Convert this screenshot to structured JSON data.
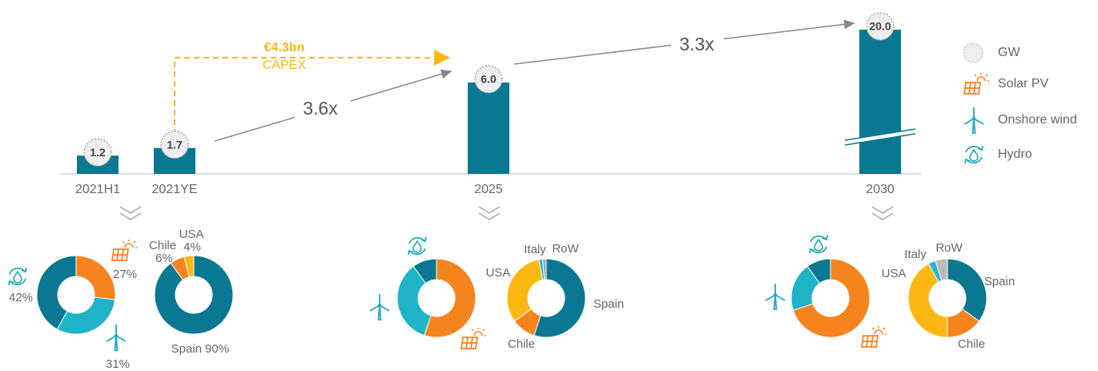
{
  "chart_data": [
    {
      "type": "bar",
      "categories": [
        "2021H1",
        "2021YE",
        "2025",
        "2030"
      ],
      "values": [
        1.2,
        1.7,
        6.0,
        20.0
      ],
      "value_labels": [
        "1.2",
        "1.7",
        "6.0",
        "20.0"
      ],
      "color": "#0b7893",
      "annotations": [
        "€4.3bn",
        "CAPEX",
        "3.6x",
        "3.3x"
      ],
      "legend": [
        "GW",
        "Solar PV",
        "Onshore wind",
        "Hydro"
      ]
    },
    {
      "type": "donut",
      "values": [
        27,
        31,
        42
      ],
      "value_labels": [
        "27%",
        "31%",
        "42%"
      ],
      "colors": [
        "#f5841f",
        "#1fb3c8",
        "#0b7893"
      ]
    },
    {
      "type": "donut",
      "categories": [
        "Spain",
        "Chile",
        "USA"
      ],
      "values": [
        90,
        6,
        4
      ],
      "value_labels": [
        "90%",
        "6%",
        "4%"
      ],
      "colors": [
        "#0b7893",
        "#f5841f",
        "#fdb813"
      ]
    },
    {
      "type": "donut",
      "values": [
        55,
        35,
        10
      ],
      "colors": [
        "#f5841f",
        "#1fb3c8",
        "#0b7893"
      ]
    },
    {
      "type": "donut",
      "categories": [
        "Spain",
        "Chile",
        "USA",
        "Italy",
        "RoW"
      ],
      "values": [
        55,
        10,
        32,
        1.5,
        1.5
      ],
      "colors": [
        "#0b7893",
        "#f5841f",
        "#fdb813",
        "#29b6d6",
        "#9ab"
      ]
    },
    {
      "type": "donut",
      "values": [
        70,
        20,
        10
      ],
      "colors": [
        "#f5841f",
        "#1fb3c8",
        "#0b7893"
      ]
    },
    {
      "type": "donut",
      "categories": [
        "Spain",
        "Chile",
        "USA",
        "Italy",
        "RoW"
      ],
      "values": [
        35,
        15,
        42,
        3,
        5
      ],
      "colors": [
        "#0b7893",
        "#f5841f",
        "#fdb813",
        "#29b6d6",
        "#bbbbbb"
      ]
    }
  ]
}
